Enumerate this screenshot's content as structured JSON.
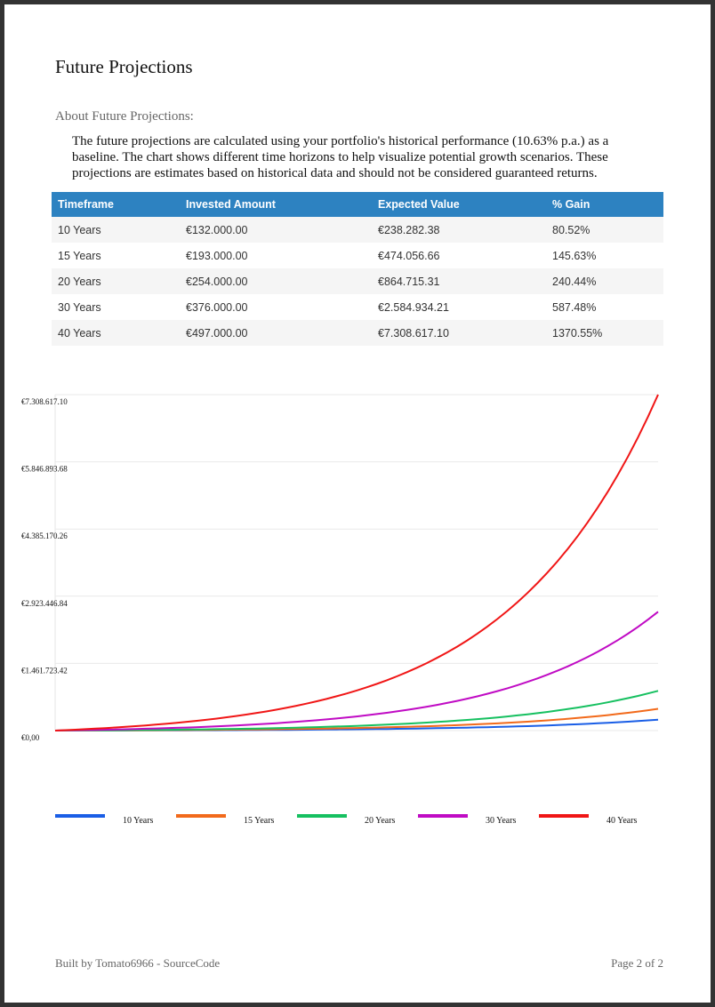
{
  "page_title": "Future Projections",
  "about": {
    "heading": "About Future Projections:",
    "text": "The future projections are calculated using your portfolio's historical performance (10.63% p.a.) as a baseline. The chart shows different time horizons to help visualize potential growth scenarios. These projections are estimates based on historical data and should not be considered guaranteed returns."
  },
  "table": {
    "headers": [
      "Timeframe",
      "Invested Amount",
      "Expected Value",
      "% Gain"
    ],
    "rows": [
      [
        "10 Years",
        "€132.000.00",
        "€238.282.38",
        "80.52%"
      ],
      [
        "15 Years",
        "€193.000.00",
        "€474.056.66",
        "145.63%"
      ],
      [
        "20 Years",
        "€254.000.00",
        "€864.715.31",
        "240.44%"
      ],
      [
        "30 Years",
        "€376.000.00",
        "€2.584.934.21",
        "587.48%"
      ],
      [
        "40 Years",
        "€497.000.00",
        "€7.308.617.10",
        "1370.55%"
      ]
    ]
  },
  "chart_data": {
    "type": "line",
    "title": "",
    "xlabel": "",
    "ylabel": "",
    "ylim": [
      0,
      7308617.1
    ],
    "y_tick_labels": [
      "€7.308.617.10",
      "€5.846.893.68",
      "€4.385.170.26",
      "€2.923.446.84",
      "€1.461.723.42",
      "€0,00"
    ],
    "y_tick_values": [
      7308617.1,
      5846893.68,
      4385170.26,
      2923446.84,
      1461723.42,
      0
    ],
    "legend_position": "bottom",
    "grid": true,
    "series": [
      {
        "name": "10 Years",
        "color": "#1a5ee6",
        "start": 0,
        "end": 238282.38
      },
      {
        "name": "15 Years",
        "color": "#f26a1b",
        "start": 0,
        "end": 474056.66
      },
      {
        "name": "20 Years",
        "color": "#16c060",
        "start": 0,
        "end": 864715.31
      },
      {
        "name": "30 Years",
        "color": "#c00bc4",
        "start": 0,
        "end": 2584934.21
      },
      {
        "name": "40 Years",
        "color": "#f01616",
        "start": 0,
        "end": 7308617.1
      }
    ]
  },
  "footer": {
    "left": "Built by Tomato6966 - SourceCode",
    "right": "Page 2 of 2"
  }
}
